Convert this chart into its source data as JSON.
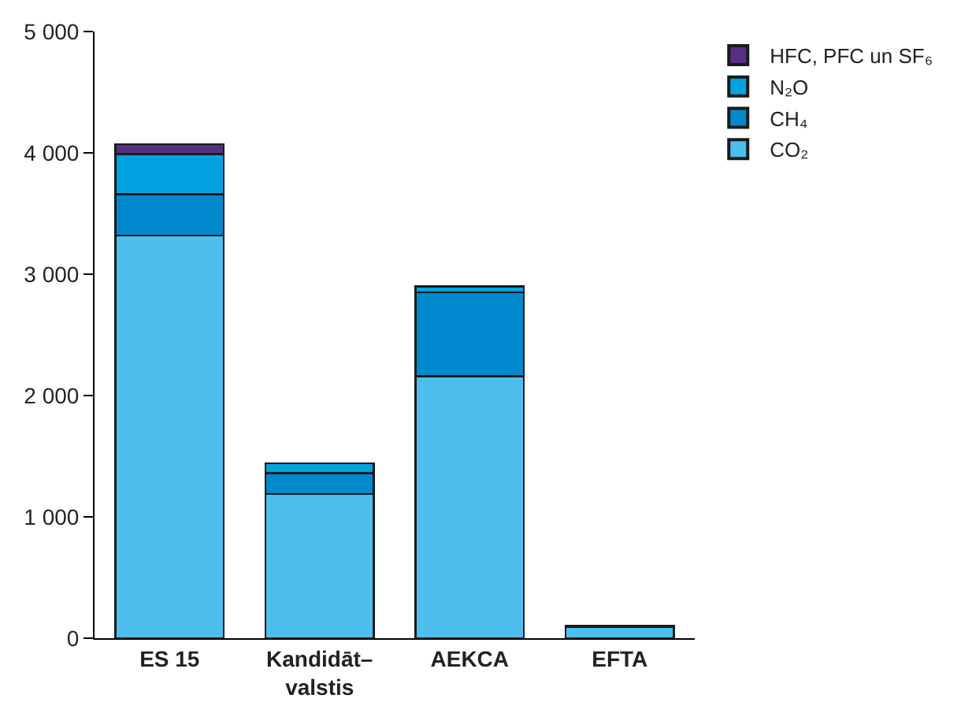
{
  "chart_data": {
    "type": "bar",
    "stacked": true,
    "categories": [
      "ES 15",
      "Kandidāt–\nvalstis",
      "AEKCA",
      "EFTA"
    ],
    "series": [
      {
        "name": "CO₂",
        "color": "#4dbfed",
        "values": [
          3320,
          1190,
          2160,
          90
        ]
      },
      {
        "name": "CH₄",
        "color": "#0089cc",
        "values": [
          340,
          170,
          690,
          null
        ]
      },
      {
        "name": "N₂O",
        "color": "#00a3e0",
        "values": [
          330,
          80,
          50,
          10
        ]
      },
      {
        "name": "HFC, PFC un SF₆",
        "color": "#553081",
        "values": [
          80,
          null,
          null,
          null
        ]
      }
    ],
    "ylim": [
      0,
      5000
    ],
    "yticks": [
      {
        "value": 0,
        "label": "0"
      },
      {
        "value": 1000,
        "label": "1 000"
      },
      {
        "value": 2000,
        "label": "2 000"
      },
      {
        "value": 3000,
        "label": "3 000"
      },
      {
        "value": 4000,
        "label": "4 000"
      },
      {
        "value": 5000,
        "label": "5 000"
      }
    ],
    "legend": "top right"
  }
}
